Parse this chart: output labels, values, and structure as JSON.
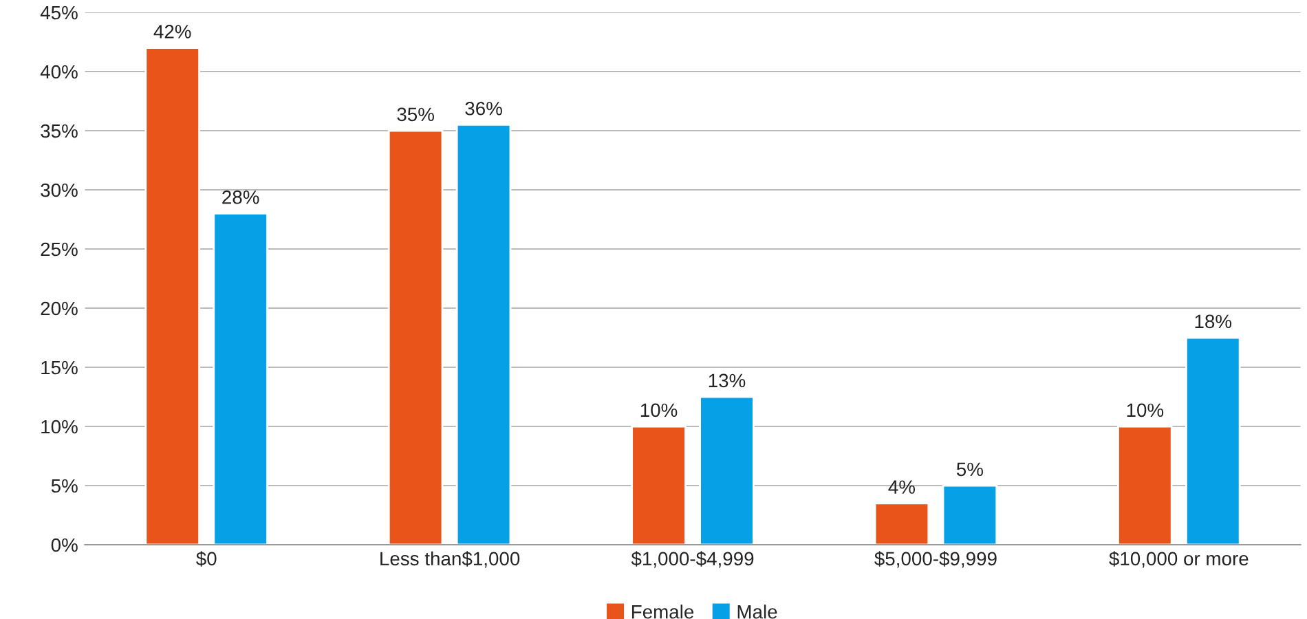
{
  "chart_data": {
    "type": "bar",
    "categories": [
      "$0",
      "Less than$1,000",
      "$1,000-$4,999",
      "$5,000-$9,999",
      "$10,000 or more"
    ],
    "series": [
      {
        "name": "Female",
        "color": "#e8541a",
        "values": [
          42,
          35,
          10,
          3.5,
          10
        ],
        "value_labels": [
          "42%",
          "35%",
          "10%",
          "4%",
          "10%"
        ]
      },
      {
        "name": "Male",
        "color": "#06a0e6",
        "values": [
          28,
          35.5,
          12.5,
          5,
          17.5
        ],
        "value_labels": [
          "28%",
          "36%",
          "13%",
          "5%",
          "18%"
        ]
      }
    ],
    "ylim": [
      0,
      45
    ],
    "yticks": [
      {
        "value": 0,
        "label": "0%"
      },
      {
        "value": 5,
        "label": "5%"
      },
      {
        "value": 10,
        "label": "10%"
      },
      {
        "value": 15,
        "label": "15%"
      },
      {
        "value": 20,
        "label": "20%"
      },
      {
        "value": 25,
        "label": "25%"
      },
      {
        "value": 30,
        "label": "30%"
      },
      {
        "value": 35,
        "label": "35%"
      },
      {
        "value": 40,
        "label": "40%"
      },
      {
        "value": 45,
        "label": "45%"
      }
    ],
    "grid": "y",
    "legend": "bottom"
  }
}
